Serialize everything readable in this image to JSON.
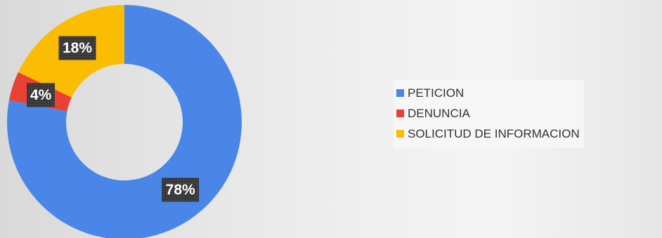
{
  "chart_data": {
    "type": "pie",
    "title": "",
    "categories": [
      "PETICION",
      "DENUNCIA",
      "SOLICITUD DE INFORMACION"
    ],
    "values": [
      78,
      4,
      18
    ],
    "data_labels": [
      "78%",
      "4%",
      "18%"
    ],
    "colors": [
      "#4A86E8",
      "#E94235",
      "#FBBC04"
    ],
    "legend_position": "right",
    "style": "donut"
  }
}
